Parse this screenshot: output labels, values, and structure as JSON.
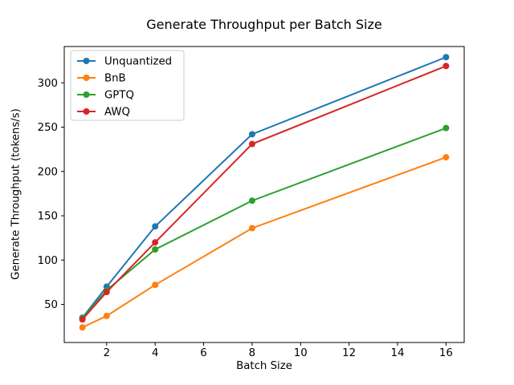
{
  "chart_data": {
    "type": "line",
    "title": "Generate Throughput per Batch Size",
    "xlabel": "Batch Size",
    "ylabel": "Generate Throughput (tokens/s)",
    "x": [
      1,
      2,
      4,
      8,
      16
    ],
    "series": [
      {
        "name": "Unquantized",
        "color": "#1f77b4",
        "values": [
          35,
          70,
          138,
          242,
          329
        ]
      },
      {
        "name": "BnB",
        "color": "#ff7f0e",
        "values": [
          24,
          37,
          72,
          136,
          216
        ]
      },
      {
        "name": "GPTQ",
        "color": "#2ca02c",
        "values": [
          34,
          66,
          112,
          167,
          249
        ]
      },
      {
        "name": "AWQ",
        "color": "#d62728",
        "values": [
          33,
          64,
          120,
          231,
          319
        ]
      }
    ],
    "xticks": [
      2,
      4,
      6,
      8,
      10,
      12,
      14,
      16
    ],
    "yticks": [
      50,
      100,
      150,
      200,
      250,
      300
    ],
    "xlim": [
      0.25,
      16.75
    ],
    "ylim": [
      7,
      341
    ],
    "grid": false,
    "legend_position": "upper left",
    "marker": "o",
    "axis_color": "#000000",
    "legend_border_color": "#cccccc",
    "background_color": "#ffffff"
  }
}
